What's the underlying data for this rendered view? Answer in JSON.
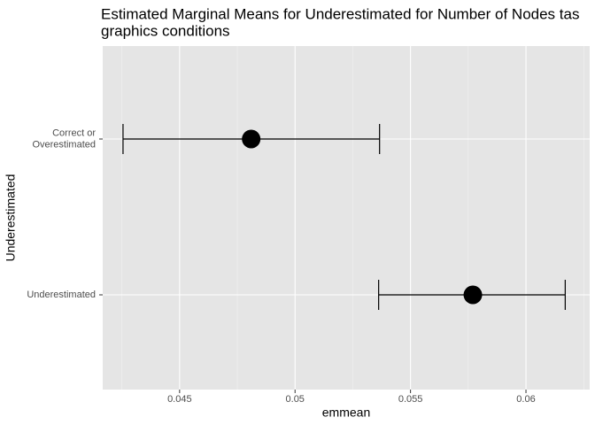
{
  "chart_data": {
    "type": "pointrange",
    "title": [
      "Estimated Marginal Means for Underestimated for Number of Nodes tas",
      "graphics conditions"
    ],
    "x_label": "emmean",
    "y_label": "Underestimated",
    "categories": [
      [
        "Correct or",
        "Overestimated"
      ],
      [
        "Underestimated"
      ]
    ],
    "values": [
      0.0481,
      0.0577
    ],
    "lower": [
      0.04255,
      0.05362
    ],
    "upper": [
      0.05366,
      0.0617
    ],
    "color": "#000000",
    "xlim": [
      0.04167,
      0.06276
    ],
    "xticks": [
      0.045,
      0.05,
      0.055,
      0.06
    ],
    "grid": true
  }
}
